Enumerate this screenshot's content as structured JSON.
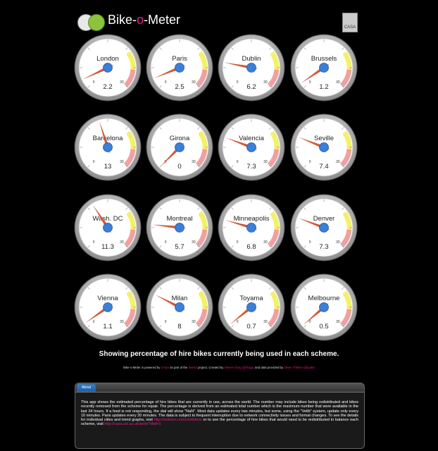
{
  "header": {
    "title_part1": "Bike-",
    "title_part2": "o",
    "title_part3": "-Meter",
    "logo_label": "CASA"
  },
  "colors": {
    "accent": "#e0228a",
    "needle": "#d05a3a",
    "hub": "#3a7fd8",
    "warn_yellow": "#f3f06a",
    "warn_red": "#f0a0a0"
  },
  "gauge": {
    "min_label": "0",
    "max_label": "30",
    "max_value": 30
  },
  "cities": [
    {
      "name": "London",
      "value": "2.2"
    },
    {
      "name": "Paris",
      "value": "2.5"
    },
    {
      "name": "Dublin",
      "value": "6.2"
    },
    {
      "name": "Brussels",
      "value": "1.2"
    },
    {
      "name": "Barcelona",
      "value": "13"
    },
    {
      "name": "Girona",
      "value": "0"
    },
    {
      "name": "Valencia",
      "value": "7.3"
    },
    {
      "name": "Seville",
      "value": "7.4"
    },
    {
      "name": "Wash. DC",
      "value": "11.3"
    },
    {
      "name": "Montreal",
      "value": "5.7"
    },
    {
      "name": "Minneapolis",
      "value": "6.8"
    },
    {
      "name": "Denver",
      "value": "7.3"
    },
    {
      "name": "Vienna",
      "value": "1.1"
    },
    {
      "name": "Milan",
      "value": "8"
    },
    {
      "name": "Toyama",
      "value": "0.7"
    },
    {
      "name": "Melbourne",
      "value": "0.5"
    }
  ],
  "caption": "Showing percentage of hire bikes currently being used in each scheme.",
  "credits": {
    "t1": "Bike-o-Meter is powered by ",
    "l1": "CASA",
    "t2": " as part of the ",
    "l2": "NeISS",
    "t3": " project. Created by ",
    "l3": "Steven Gray (@frogo)",
    "t4": " and data provided by ",
    "l4": "Oliver O'Brien (@oobr)"
  },
  "about": {
    "tab": "About",
    "text": "This app shows the estimated percentage of hire bikes that are currently in use, across the world. The number may include bikes being redistributed and bikes recently removed from the scheme for repair. The percentage is derived from an estimated total number which is the maximum number that were available in the last 24 hours. If a feed is not responding, the dial will show \"NaN\". Most data updates every two minutes, but some, using the \"Velib\" system, update only every 10 minutes. Paris updates every 20 minutes. The data is subject to frequent interruption due to network connectivity issues and format changes. To see the details for individual cities and trend graphs, visit ",
    "link1": "http://oobrien.com/vis/bikes/",
    "text2": " or to see the percentage of hire bikes that would need to be redistributed to balance each scheme, visit ",
    "link2": "http://casa.ucl.ac.uk/bom/?dist=1"
  }
}
